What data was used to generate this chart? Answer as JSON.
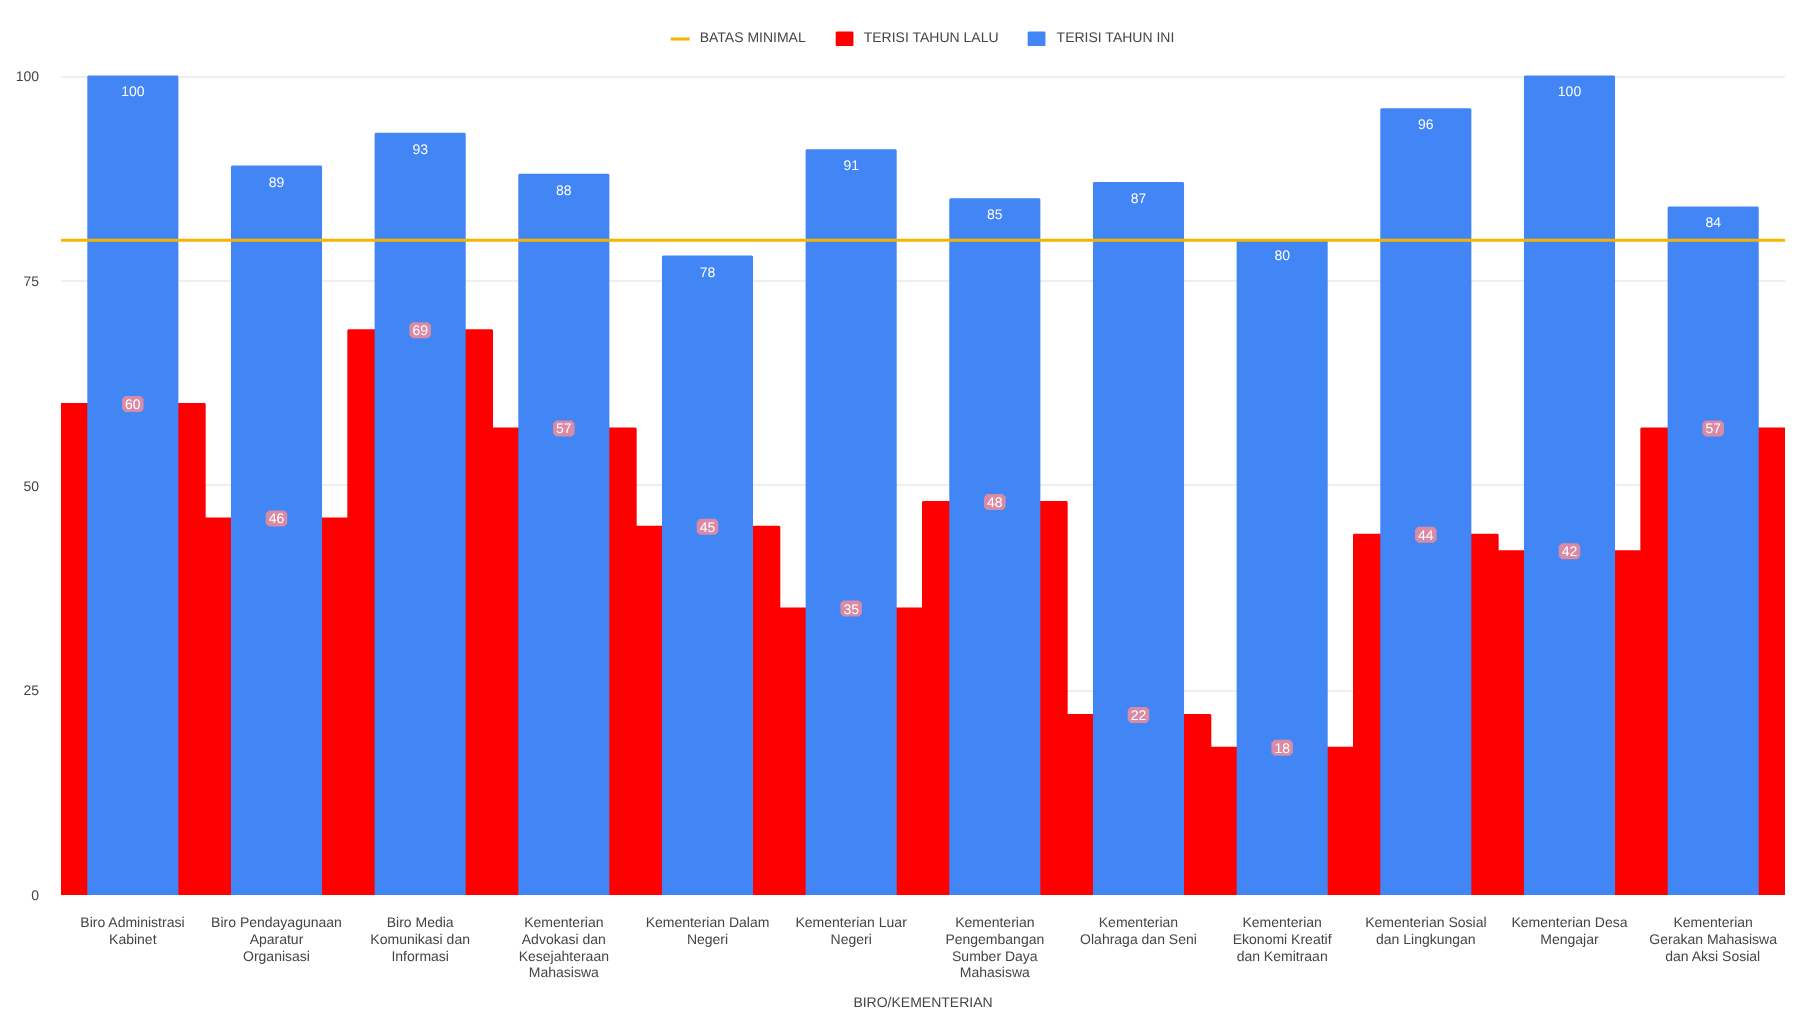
{
  "chart_data": {
    "type": "bar",
    "xlabel": "BIRO/KEMENTERIAN",
    "categories": [
      "Biro Administrasi Kabinet",
      "Biro Pendayagunaan Aparatur Organisasi",
      "Biro Media Komunikasi dan Informasi",
      "Kementerian Advokasi dan Kesejahteraan Mahasiswa",
      "Kementerian Dalam Negeri",
      "Kementerian Luar Negeri",
      "Kementerian Pengembangan Sumber Daya Mahasiswa",
      "Kementerian Olahraga dan Seni",
      "Kementerian Ekonomi Kreatif dan Kemitraan",
      "Kementerian Sosial dan Lingkungan",
      "Kementerian Desa Mengajar",
      "Kementerian Gerakan Mahasiswa dan Aksi Sosial"
    ],
    "series": [
      {
        "name": "TERISI TAHUN LALU",
        "color": "#ff0000",
        "values": [
          60,
          46,
          69,
          57,
          45,
          35,
          48,
          22,
          18,
          44,
          42,
          57
        ]
      },
      {
        "name": "TERISI TAHUN INI",
        "color": "#4285f4",
        "values": [
          100,
          89,
          93,
          88,
          78,
          91,
          85,
          87,
          80,
          96,
          100,
          84
        ]
      }
    ],
    "ref_lines": [
      {
        "axis": "y",
        "value": 80,
        "label": "BATAS MINIMAL",
        "color": "#f4b400"
      }
    ],
    "ylim": [
      0,
      100
    ],
    "yticks": [
      0,
      25,
      50,
      75,
      100
    ],
    "grid": "y",
    "legend": "top",
    "data_labels": true
  }
}
